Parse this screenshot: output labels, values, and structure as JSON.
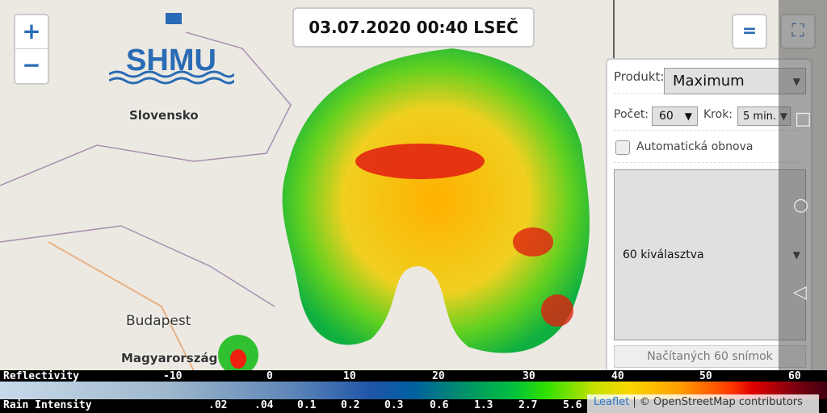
{
  "map": {
    "timestamp": "03.07.2020 00:40 LSEČ",
    "zoom_in": "+",
    "zoom_out": "−",
    "logo_text": "SHMU",
    "place_labels": [
      "Slovensko",
      "Budapest",
      "Magyarország"
    ],
    "menu_icon": "hamburger-icon",
    "fullscreen_icon": "fullscreen-icon"
  },
  "panel": {
    "product_label": "Produkt:",
    "product_value": "Maximum",
    "count_label": "Počet:",
    "count_value": "60",
    "step_label": "Krok:",
    "step_value": "5 min.",
    "auto_refresh_label": "Automatická obnova",
    "auto_refresh_checked": false,
    "frames_select": "60 kiválasztva",
    "load_button": "Načítaných 60 snímok"
  },
  "legend": {
    "reflectivity_label": "Reflectivity",
    "reflectivity_ticks": [
      "-10",
      "0",
      "10",
      "20",
      "30",
      "40",
      "50",
      "60"
    ],
    "rain_label": "Rain Intensity",
    "rain_ticks": [
      ".02",
      ".04",
      "0.1",
      "0.2",
      "0.3",
      "0.6",
      "1.3",
      "2.7",
      "5.6"
    ]
  },
  "attribution": {
    "leaflet": "Leaflet",
    "osm": "| © OpenStreetMap contributors"
  }
}
